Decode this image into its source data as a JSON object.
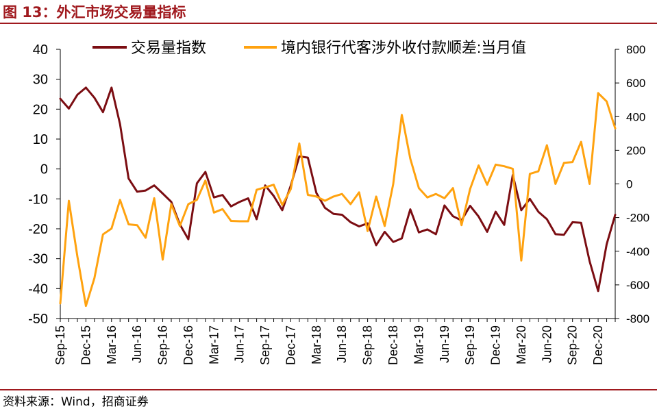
{
  "title": "图 13：外汇市场交易量指标",
  "source": "资料来源：Wind，招商证券",
  "colors": {
    "series1": "#7b0d12",
    "series2": "#ffa20f",
    "accent": "#a0191e"
  },
  "chart_data": {
    "type": "line",
    "legend_position": "top",
    "grid": false,
    "x": [
      "Sep-15",
      "Oct-15",
      "Nov-15",
      "Dec-15",
      "Jan-16",
      "Feb-16",
      "Mar-16",
      "Apr-16",
      "May-16",
      "Jun-16",
      "Jul-16",
      "Aug-16",
      "Sep-16",
      "Oct-16",
      "Nov-16",
      "Dec-16",
      "Jan-17",
      "Feb-17",
      "Mar-17",
      "Apr-17",
      "May-17",
      "Jun-17",
      "Jul-17",
      "Aug-17",
      "Sep-17",
      "Oct-17",
      "Nov-17",
      "Dec-17",
      "Jan-18",
      "Feb-18",
      "Mar-18",
      "Apr-18",
      "May-18",
      "Jun-18",
      "Jul-18",
      "Aug-18",
      "Sep-18",
      "Oct-18",
      "Nov-18",
      "Dec-18",
      "Jan-19",
      "Feb-19",
      "Mar-19",
      "Apr-19",
      "May-19",
      "Jun-19",
      "Jul-19",
      "Aug-19",
      "Sep-19",
      "Oct-19",
      "Nov-19",
      "Dec-19",
      "Jan-20",
      "Feb-20",
      "Mar-20",
      "Apr-20",
      "May-20",
      "Jun-20",
      "Jul-20",
      "Aug-20",
      "Sep-20",
      "Oct-20",
      "Nov-20",
      "Dec-20",
      "Jan-21",
      "Feb-21"
    ],
    "x_tick_labels": [
      "Sep-15",
      "Dec-15",
      "Mar-16",
      "Jun-16",
      "Sep-16",
      "Dec-16",
      "Mar-17",
      "Jun-17",
      "Sep-17",
      "Dec-17",
      "Mar-18",
      "Jun-18",
      "Sep-18",
      "Dec-18",
      "Mar-19",
      "Jun-19",
      "Sep-19",
      "Dec-19",
      "Mar-20",
      "Jun-20",
      "Sep-20",
      "Dec-20"
    ],
    "y_left": {
      "min": -50,
      "max": 40,
      "ticks": [
        -50,
        -40,
        -30,
        -20,
        -10,
        0,
        10,
        20,
        30,
        40
      ]
    },
    "y_right": {
      "min": -800,
      "max": 800,
      "ticks": [
        -800,
        -600,
        -400,
        -200,
        0,
        200,
        400,
        600,
        800
      ]
    },
    "series": [
      {
        "name": "交易量指数",
        "axis": "left",
        "values": [
          23.5,
          20.2,
          24.8,
          27.2,
          23.8,
          19.0,
          27.2,
          15.0,
          -3.2,
          -7.6,
          -7.2,
          -5.5,
          -8.2,
          -11.0,
          -18.5,
          -23.5,
          -4.8,
          -1.0,
          -9.5,
          -8.7,
          -12.5,
          -11.0,
          -9.8,
          -16.8,
          -5.5,
          -9.0,
          -13.8,
          -5.5,
          4.2,
          3.8,
          -8.0,
          -13.0,
          -15.0,
          -15.3,
          -17.8,
          -19.2,
          -18.2,
          -25.5,
          -21.0,
          -24.4,
          -23.2,
          -13.5,
          -21.2,
          -20.2,
          -21.8,
          -12.2,
          -15.8,
          -17.2,
          -12.3,
          -15.9,
          -21.0,
          -14.3,
          -18.7,
          -2.0,
          -13.8,
          -10.0,
          -14.3,
          -16.8,
          -21.8,
          -22.0,
          -17.8,
          -18.0,
          -30.8,
          -40.8,
          -25.2,
          -15.3
        ]
      },
      {
        "name": "境内银行代客涉外收付款顺差:当月值",
        "axis": "right",
        "values": [
          -710,
          -100,
          -430,
          -725,
          -560,
          -300,
          -265,
          -95,
          -240,
          -245,
          -320,
          -85,
          -450,
          -120,
          -250,
          -120,
          -95,
          20,
          -170,
          -150,
          -220,
          -222,
          -222,
          -35,
          -20,
          -5,
          -125,
          -30,
          240,
          -65,
          -75,
          -100,
          -75,
          -60,
          -120,
          -50,
          -280,
          -75,
          -250,
          0,
          410,
          150,
          -25,
          -80,
          -60,
          -85,
          -25,
          -245,
          -30,
          110,
          -5,
          115,
          105,
          90,
          -455,
          60,
          75,
          230,
          0,
          125,
          130,
          250,
          0,
          540,
          490,
          330
        ]
      }
    ]
  }
}
